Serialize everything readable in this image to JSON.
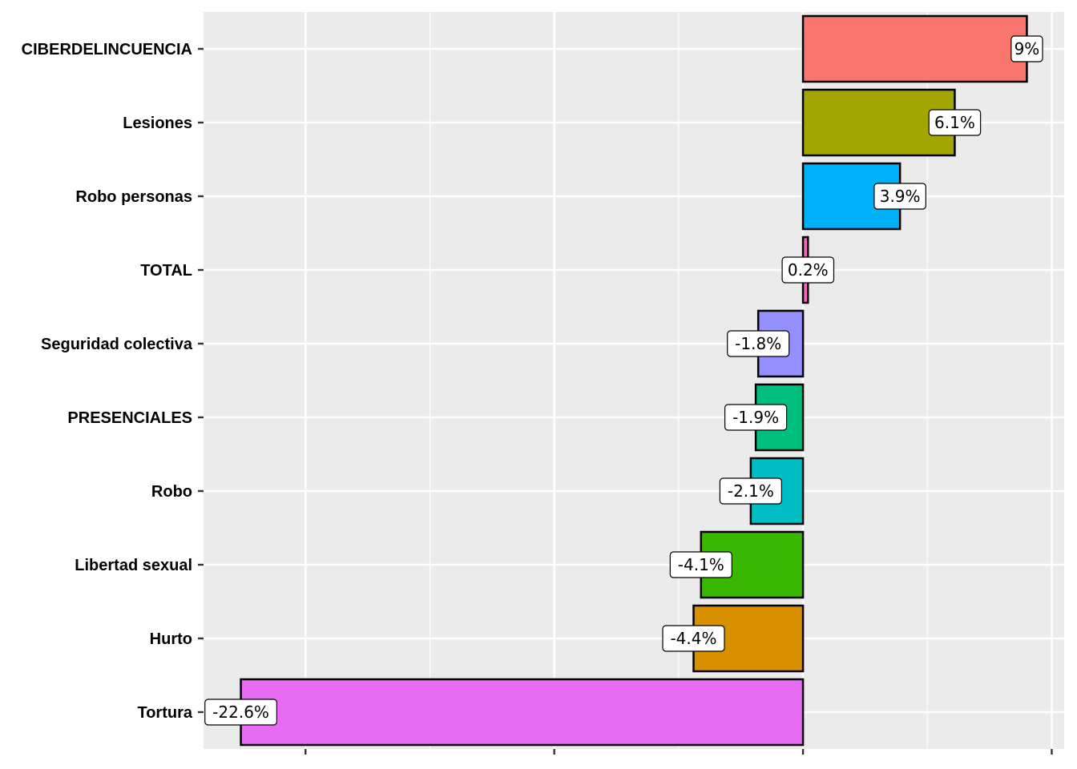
{
  "chart_data": {
    "type": "bar",
    "orientation": "horizontal",
    "title": "",
    "xlabel": "",
    "ylabel": "",
    "xlim": [
      -24.1,
      10.5
    ],
    "x_major_ticks": [
      -20,
      -10,
      0,
      10
    ],
    "x_minor_ticks": [
      -15,
      -5,
      5
    ],
    "x_tick_labels_shown": false,
    "grid": true,
    "legend": "none",
    "categories": [
      "CIBERDELINCUENCIA",
      "Lesiones",
      "Robo personas",
      "TOTAL",
      "Seguridad colectiva",
      "PRESENCIALES",
      "Robo",
      "Libertad sexual",
      "Hurto",
      "Tortura"
    ],
    "values": [
      9,
      6.1,
      3.9,
      0.2,
      -1.8,
      -1.9,
      -2.1,
      -4.1,
      -4.4,
      -22.6
    ],
    "labels": [
      "9%",
      "6.1%",
      "3.9%",
      "0.2%",
      "-1.8%",
      "-1.9%",
      "-2.1%",
      "-4.1%",
      "-4.4%",
      "-22.6%"
    ],
    "colors": [
      "#F8766D",
      "#A3A500",
      "#00B0F6",
      "#FF62BC",
      "#9590FF",
      "#00BF7D",
      "#00BFC4",
      "#39B600",
      "#D89000",
      "#E76BF3"
    ]
  }
}
